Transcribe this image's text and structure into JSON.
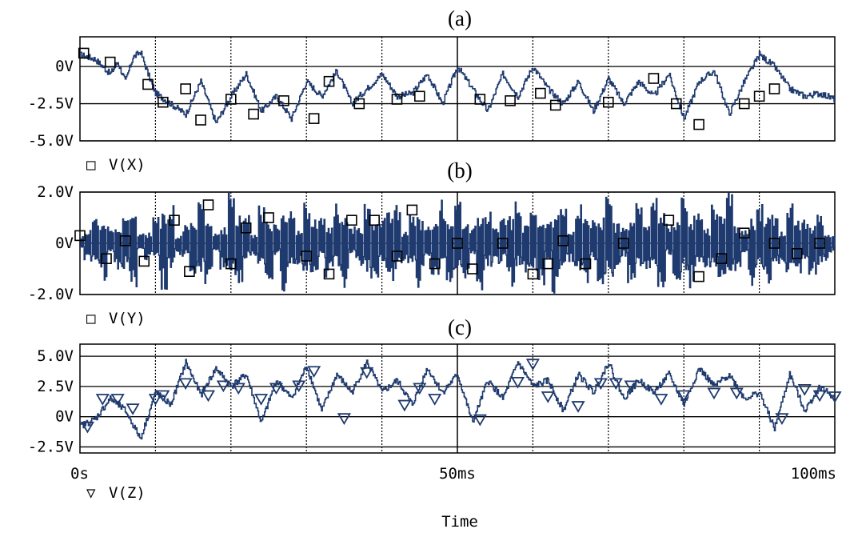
{
  "chart_data": [
    {
      "type": "line",
      "label": "(a)",
      "ylim": [
        -5,
        2
      ],
      "yticks": [
        {
          "v": 0,
          "t": "0V"
        },
        {
          "v": -2.5,
          "t": "-2.5V"
        },
        {
          "v": -5,
          "t": "-5.0V"
        }
      ],
      "series": [
        {
          "name": "V(X)",
          "marker": "square",
          "color": "#1f3a6e",
          "x": [
            0,
            2,
            4,
            5,
            6,
            7,
            8,
            9,
            10,
            12,
            14,
            16,
            18,
            20,
            22,
            24,
            26,
            28,
            30,
            32,
            34,
            36,
            38,
            40,
            42,
            44,
            46,
            48,
            50,
            52,
            54,
            56,
            58,
            60,
            62,
            64,
            66,
            68,
            70,
            72,
            74,
            76,
            78,
            80,
            82,
            84,
            86,
            88,
            90,
            92,
            94,
            96,
            98,
            100
          ],
          "y": [
            0.8,
            0.5,
            -0.5,
            0.3,
            -1.0,
            0.6,
            1.0,
            -0.5,
            -1.8,
            -2.5,
            -3.2,
            -1.0,
            -3.8,
            -2.0,
            -0.5,
            -3.0,
            -2.0,
            -3.5,
            -1.0,
            -2.0,
            -0.3,
            -2.5,
            -1.5,
            -0.5,
            -2.0,
            -1.8,
            -0.5,
            -2.5,
            0.0,
            -1.5,
            -3.0,
            -0.5,
            -2.0,
            0.0,
            -1.5,
            -2.5,
            -1.0,
            -3.0,
            -0.8,
            -2.5,
            -1.0,
            -2.0,
            -0.5,
            -3.5,
            -1.0,
            -0.3,
            -3.2,
            -1.0,
            0.8,
            0.0,
            -1.5,
            -2.0,
            -1.8,
            -2.2
          ],
          "markers": [
            [
              0.5,
              0.9
            ],
            [
              4,
              0.3
            ],
            [
              9,
              -1.2
            ],
            [
              11,
              -2.4
            ],
            [
              14,
              -1.5
            ],
            [
              16,
              -3.6
            ],
            [
              20,
              -2.2
            ],
            [
              23,
              -3.2
            ],
            [
              27,
              -2.3
            ],
            [
              31,
              -3.5
            ],
            [
              33,
              -1.0
            ],
            [
              37,
              -2.5
            ],
            [
              42,
              -2.2
            ],
            [
              45,
              -2.0
            ],
            [
              53,
              -2.2
            ],
            [
              57,
              -2.3
            ],
            [
              61,
              -1.8
            ],
            [
              63,
              -2.6
            ],
            [
              70,
              -2.4
            ],
            [
              76,
              -0.8
            ],
            [
              79,
              -2.5
            ],
            [
              82,
              -3.9
            ],
            [
              88,
              -2.5
            ],
            [
              90,
              -2.0
            ],
            [
              92,
              -1.5
            ]
          ]
        }
      ]
    },
    {
      "type": "line",
      "label": "(b)",
      "ylim": [
        -2,
        2
      ],
      "yticks": [
        {
          "v": 2,
          "t": "2.0V"
        },
        {
          "v": 0,
          "t": "0V"
        },
        {
          "v": -2,
          "t": "-2.0V"
        }
      ],
      "series": [
        {
          "name": "V(Y)",
          "marker": "square",
          "color": "#1f3a6e",
          "x": [
            0,
            1,
            2,
            3,
            4,
            5,
            6,
            7,
            8,
            9,
            10,
            11,
            12,
            13,
            14,
            15,
            16,
            17,
            18,
            19,
            20,
            21,
            22,
            23,
            24,
            25,
            26,
            27,
            28,
            29,
            30,
            31,
            32,
            33,
            34,
            35,
            36,
            37,
            38,
            39,
            40,
            41,
            42,
            43,
            44,
            45,
            46,
            47,
            48,
            49,
            50,
            51,
            52,
            53,
            54,
            55,
            56,
            57,
            58,
            59,
            60,
            61,
            62,
            63,
            64,
            65,
            66,
            67,
            68,
            69,
            70,
            71,
            72,
            73,
            74,
            75,
            76,
            77,
            78,
            79,
            80,
            81,
            82,
            83,
            84,
            85,
            86,
            87,
            88,
            89,
            90,
            91,
            92,
            93,
            94,
            95,
            96,
            97,
            98,
            99,
            100
          ],
          "y": [
            0.3,
            -0.8,
            1.2,
            -1.4,
            0.6,
            -1.0,
            1.5,
            -1.6,
            0.4,
            -0.6,
            1.0,
            -1.8,
            1.6,
            -0.4,
            0.8,
            -1.2,
            1.7,
            -1.5,
            0.5,
            -1.0,
            1.8,
            -1.6,
            1.0,
            -0.5,
            1.4,
            -1.3,
            0.7,
            -1.7,
            1.2,
            -0.8,
            1.6,
            -1.5,
            0.9,
            -1.2,
            1.4,
            -1.6,
            0.6,
            -0.9,
            1.7,
            -1.4,
            1.1,
            -1.8,
            1.5,
            -0.7,
            1.3,
            -1.6,
            0.8,
            -1.2,
            1.6,
            -1.5,
            1.9,
            -1.3,
            0.7,
            -1.7,
            1.4,
            -0.9,
            1.2,
            -1.6,
            1.5,
            -1.1,
            1.8,
            -1.5,
            0.9,
            -1.8,
            1.3,
            -0.7,
            1.6,
            -1.4,
            1.0,
            -1.6,
            1.9,
            -1.2,
            0.8,
            -1.5,
            1.4,
            -1.0,
            1.6,
            -1.8,
            0.7,
            -1.3,
            1.7,
            -1.6,
            1.1,
            -0.9,
            1.5,
            -1.7,
            1.8,
            -1.2,
            0.6,
            -1.5,
            1.4,
            -1.6,
            1.2,
            -0.8,
            1.7,
            -1.4,
            0.9,
            -1.1,
            1.3,
            -0.6,
            0.4
          ],
          "markers": [
            [
              0,
              0.3
            ],
            [
              3.5,
              -0.6
            ],
            [
              6,
              0.1
            ],
            [
              8.5,
              -0.7
            ],
            [
              12.5,
              0.9
            ],
            [
              14.5,
              -1.1
            ],
            [
              17,
              1.5
            ],
            [
              20,
              -0.8
            ],
            [
              22,
              0.6
            ],
            [
              25,
              1.0
            ],
            [
              30,
              -0.5
            ],
            [
              33,
              -1.2
            ],
            [
              36,
              0.9
            ],
            [
              39,
              0.9
            ],
            [
              42,
              -0.5
            ],
            [
              44,
              1.3
            ],
            [
              47,
              -0.8
            ],
            [
              50,
              0.0
            ],
            [
              52,
              -1.0
            ],
            [
              56,
              0.0
            ],
            [
              60,
              -1.2
            ],
            [
              62,
              -0.8
            ],
            [
              64,
              0.1
            ],
            [
              67,
              -0.8
            ],
            [
              72,
              0.0
            ],
            [
              78,
              0.9
            ],
            [
              82,
              -1.3
            ],
            [
              85,
              -0.6
            ],
            [
              88,
              0.4
            ],
            [
              92,
              0.0
            ],
            [
              95,
              -0.4
            ],
            [
              98,
              0.0
            ]
          ]
        }
      ]
    },
    {
      "type": "line",
      "label": "(c)",
      "ylim": [
        -3,
        6
      ],
      "yticks": [
        {
          "v": 5,
          "t": "5.0V"
        },
        {
          "v": 2.5,
          "t": "2.5V"
        },
        {
          "v": 0,
          "t": "0V"
        },
        {
          "v": -2.5,
          "t": "-2.5V"
        }
      ],
      "xticks": [
        {
          "v": 0,
          "t": "0s"
        },
        {
          "v": 50,
          "t": "50ms"
        },
        {
          "v": 100,
          "t": "100ms"
        }
      ],
      "xlabel": "Time",
      "series": [
        {
          "name": "V(Z)",
          "marker": "triangle",
          "color": "#1f3a6e",
          "x": [
            0,
            2,
            4,
            6,
            8,
            10,
            12,
            14,
            16,
            18,
            20,
            22,
            24,
            26,
            28,
            30,
            32,
            34,
            36,
            38,
            40,
            42,
            44,
            46,
            48,
            50,
            52,
            54,
            56,
            58,
            60,
            62,
            64,
            66,
            68,
            70,
            72,
            74,
            76,
            78,
            80,
            82,
            84,
            86,
            88,
            90,
            92,
            94,
            96,
            98,
            100
          ],
          "y": [
            -0.8,
            -0.2,
            1.5,
            0.5,
            -1.8,
            2.0,
            1.0,
            4.5,
            1.8,
            4.0,
            2.5,
            3.5,
            -0.5,
            3.0,
            1.5,
            4.2,
            0.5,
            3.5,
            2.0,
            4.5,
            2.0,
            3.0,
            1.0,
            4.0,
            2.0,
            3.5,
            -0.5,
            3.0,
            1.5,
            4.5,
            2.5,
            3.0,
            0.5,
            3.5,
            2.0,
            4.5,
            1.5,
            3.0,
            2.0,
            3.5,
            1.0,
            4.0,
            2.5,
            3.5,
            1.5,
            2.0,
            -1.0,
            3.5,
            0.5,
            2.5,
            1.5
          ],
          "markers": [
            [
              1,
              -0.8
            ],
            [
              3,
              1.5
            ],
            [
              5,
              1.5
            ],
            [
              7,
              0.7
            ],
            [
              10,
              1.5
            ],
            [
              11,
              1.8
            ],
            [
              14,
              2.8
            ],
            [
              17,
              1.8
            ],
            [
              19,
              2.6
            ],
            [
              21,
              2.4
            ],
            [
              24,
              1.5
            ],
            [
              26,
              2.4
            ],
            [
              29,
              2.6
            ],
            [
              31,
              3.8
            ],
            [
              35,
              -0.1
            ],
            [
              38,
              3.7
            ],
            [
              43,
              1.0
            ],
            [
              45,
              2.4
            ],
            [
              47,
              1.5
            ],
            [
              53,
              -0.2
            ],
            [
              58,
              2.9
            ],
            [
              60,
              4.4
            ],
            [
              62,
              1.7
            ],
            [
              66,
              0.9
            ],
            [
              69,
              2.8
            ],
            [
              71,
              2.8
            ],
            [
              73,
              2.6
            ],
            [
              77,
              1.5
            ],
            [
              80,
              1.8
            ],
            [
              84,
              2.0
            ],
            [
              87,
              2.0
            ],
            [
              93,
              -0.1
            ],
            [
              96,
              2.3
            ],
            [
              98,
              1.8
            ],
            [
              100,
              1.7
            ]
          ]
        }
      ]
    }
  ],
  "ui": {
    "title": "",
    "legend_square": "□",
    "legend_triangle": "▽"
  }
}
